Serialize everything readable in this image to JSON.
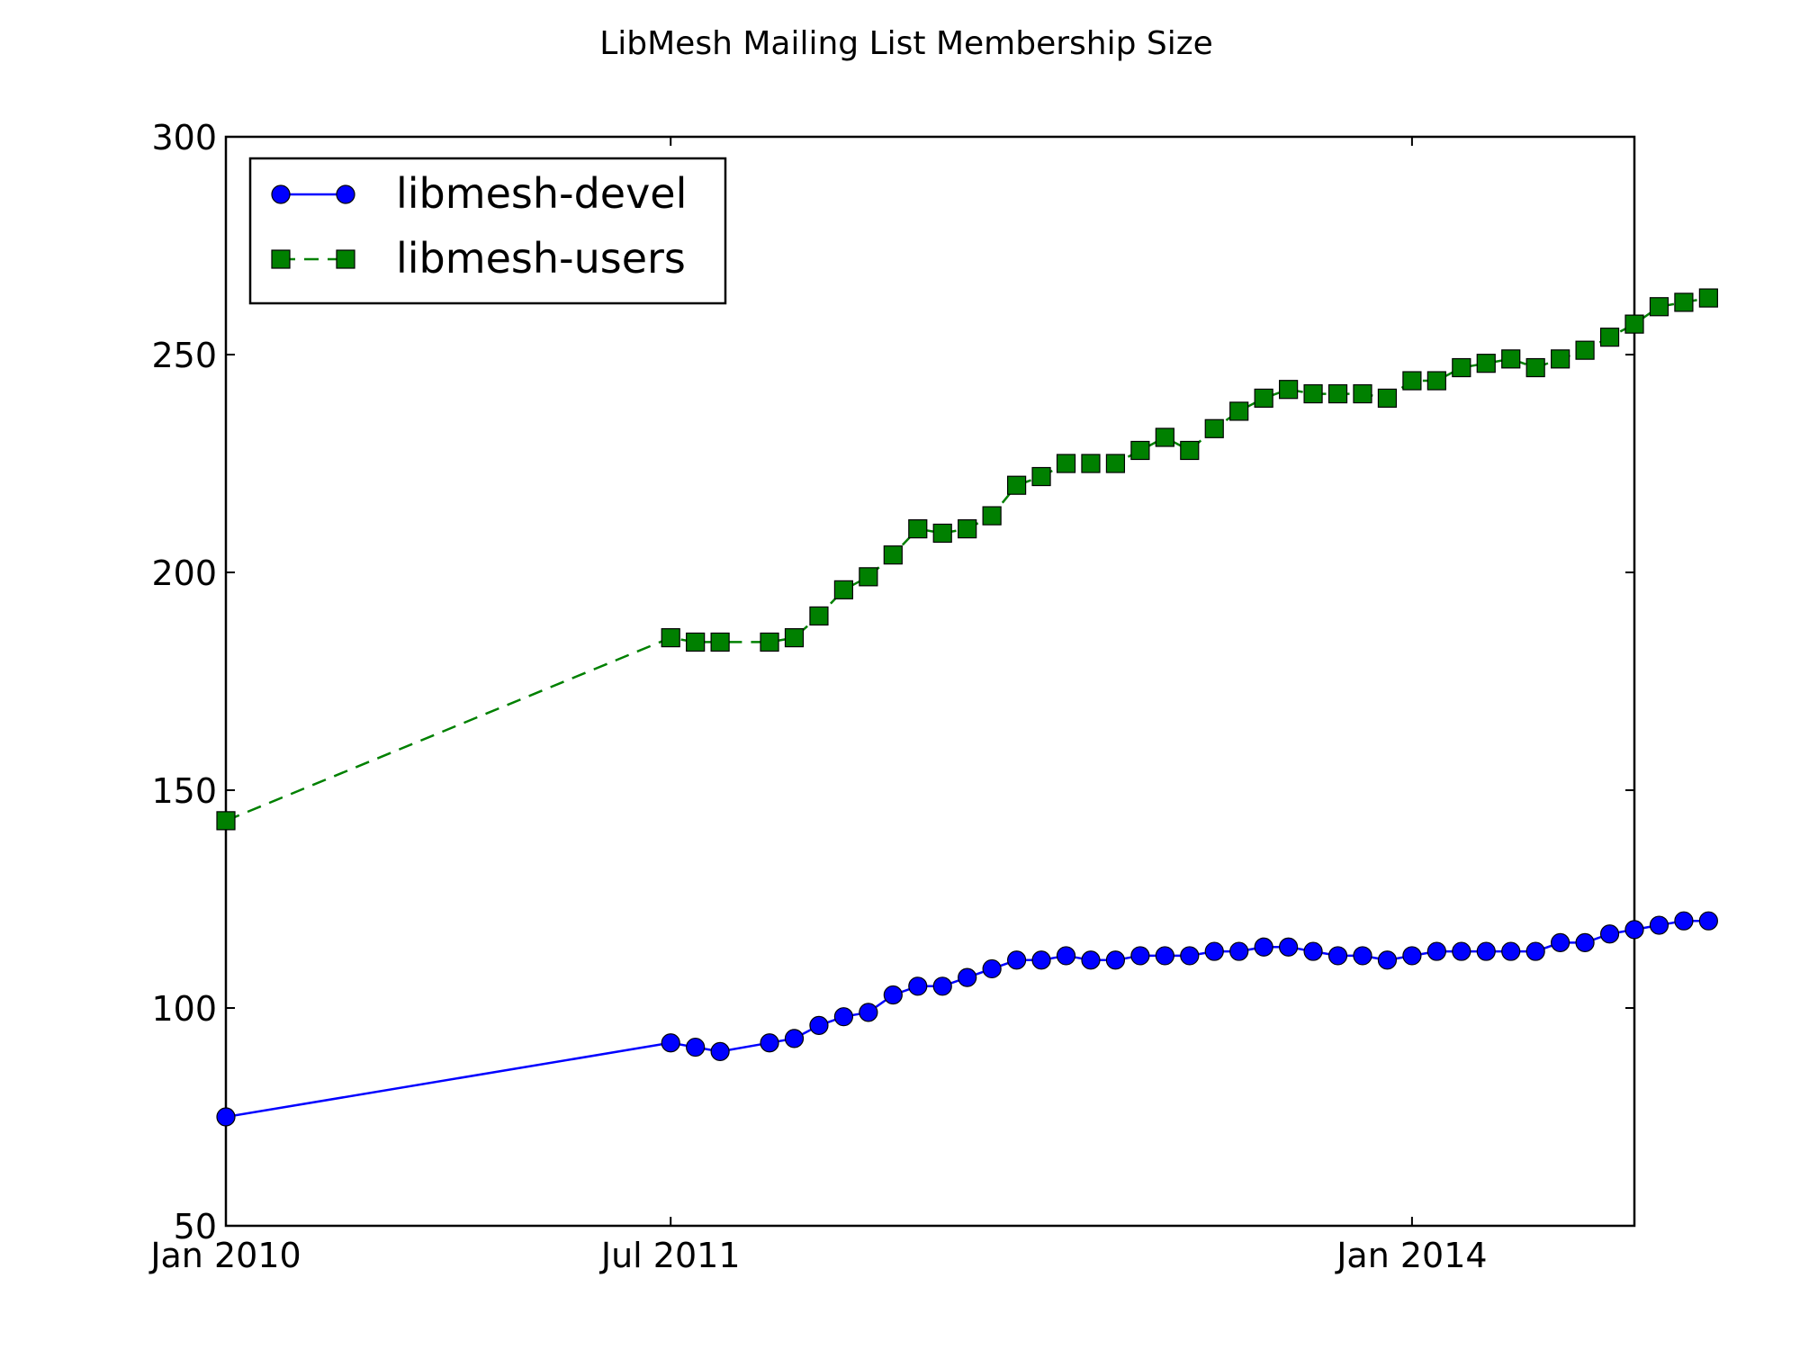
{
  "chart_data": {
    "type": "line",
    "title": "LibMesh Mailing List Membership Size",
    "xlabel": "",
    "ylabel": "",
    "x_axis_type": "date",
    "xlim": [
      "2010-01",
      "2014-10"
    ],
    "ylim": [
      50,
      300
    ],
    "x_ticks": [
      "2010-01",
      "2011-07",
      "2014-01"
    ],
    "x_tick_labels": [
      "Jan 2010",
      "Jul 2011",
      "Jan 2014"
    ],
    "y_ticks": [
      50,
      100,
      150,
      200,
      250,
      300
    ],
    "y_tick_labels": [
      "50",
      "100",
      "150",
      "200",
      "250",
      "300"
    ],
    "grid": false,
    "legend_position": "top-left",
    "series": [
      {
        "name": "libmesh-devel",
        "color": "#0000ff",
        "line_style": "solid",
        "marker": "circle",
        "points": [
          [
            "2010-01",
            75
          ],
          [
            "2011-07",
            92
          ],
          [
            "2011-08",
            91
          ],
          [
            "2011-09",
            90
          ],
          [
            "2011-11",
            92
          ],
          [
            "2011-12",
            93
          ],
          [
            "2012-01",
            96
          ],
          [
            "2012-02",
            98
          ],
          [
            "2012-03",
            99
          ],
          [
            "2012-04",
            103
          ],
          [
            "2012-05",
            105
          ],
          [
            "2012-06",
            105
          ],
          [
            "2012-07",
            107
          ],
          [
            "2012-08",
            109
          ],
          [
            "2012-09",
            111
          ],
          [
            "2012-10",
            111
          ],
          [
            "2012-11",
            112
          ],
          [
            "2012-12",
            111
          ],
          [
            "2013-01",
            111
          ],
          [
            "2013-02",
            112
          ],
          [
            "2013-03",
            112
          ],
          [
            "2013-04",
            112
          ],
          [
            "2013-05",
            113
          ],
          [
            "2013-06",
            113
          ],
          [
            "2013-07",
            114
          ],
          [
            "2013-08",
            114
          ],
          [
            "2013-09",
            113
          ],
          [
            "2013-10",
            112
          ],
          [
            "2013-11",
            112
          ],
          [
            "2013-12",
            111
          ],
          [
            "2014-01",
            112
          ],
          [
            "2014-02",
            113
          ],
          [
            "2014-03",
            113
          ],
          [
            "2014-04",
            113
          ],
          [
            "2014-05",
            113
          ],
          [
            "2014-06",
            113
          ],
          [
            "2014-07",
            115
          ],
          [
            "2014-08",
            115
          ],
          [
            "2014-09",
            117
          ],
          [
            "2014-10",
            118
          ],
          [
            "2014-11",
            119
          ],
          [
            "2014-12",
            120
          ],
          [
            "2015-01",
            120
          ]
        ]
      },
      {
        "name": "libmesh-users",
        "color": "#008000",
        "line_style": "dashed",
        "marker": "square",
        "points": [
          [
            "2010-01",
            143
          ],
          [
            "2011-07",
            185
          ],
          [
            "2011-08",
            184
          ],
          [
            "2011-09",
            184
          ],
          [
            "2011-11",
            184
          ],
          [
            "2011-12",
            185
          ],
          [
            "2012-01",
            190
          ],
          [
            "2012-02",
            196
          ],
          [
            "2012-03",
            199
          ],
          [
            "2012-04",
            204
          ],
          [
            "2012-05",
            210
          ],
          [
            "2012-06",
            209
          ],
          [
            "2012-07",
            210
          ],
          [
            "2012-08",
            213
          ],
          [
            "2012-09",
            220
          ],
          [
            "2012-10",
            222
          ],
          [
            "2012-11",
            225
          ],
          [
            "2012-12",
            225
          ],
          [
            "2013-01",
            225
          ],
          [
            "2013-02",
            228
          ],
          [
            "2013-03",
            231
          ],
          [
            "2013-04",
            228
          ],
          [
            "2013-05",
            233
          ],
          [
            "2013-06",
            237
          ],
          [
            "2013-07",
            240
          ],
          [
            "2013-08",
            242
          ],
          [
            "2013-09",
            241
          ],
          [
            "2013-10",
            241
          ],
          [
            "2013-11",
            241
          ],
          [
            "2013-12",
            240
          ],
          [
            "2014-01",
            244
          ],
          [
            "2014-02",
            244
          ],
          [
            "2014-03",
            247
          ],
          [
            "2014-04",
            248
          ],
          [
            "2014-05",
            249
          ],
          [
            "2014-06",
            247
          ],
          [
            "2014-07",
            249
          ],
          [
            "2014-08",
            251
          ],
          [
            "2014-09",
            254
          ],
          [
            "2014-10",
            257
          ],
          [
            "2014-11",
            261
          ],
          [
            "2014-12",
            262
          ],
          [
            "2015-01",
            263
          ]
        ]
      }
    ]
  }
}
